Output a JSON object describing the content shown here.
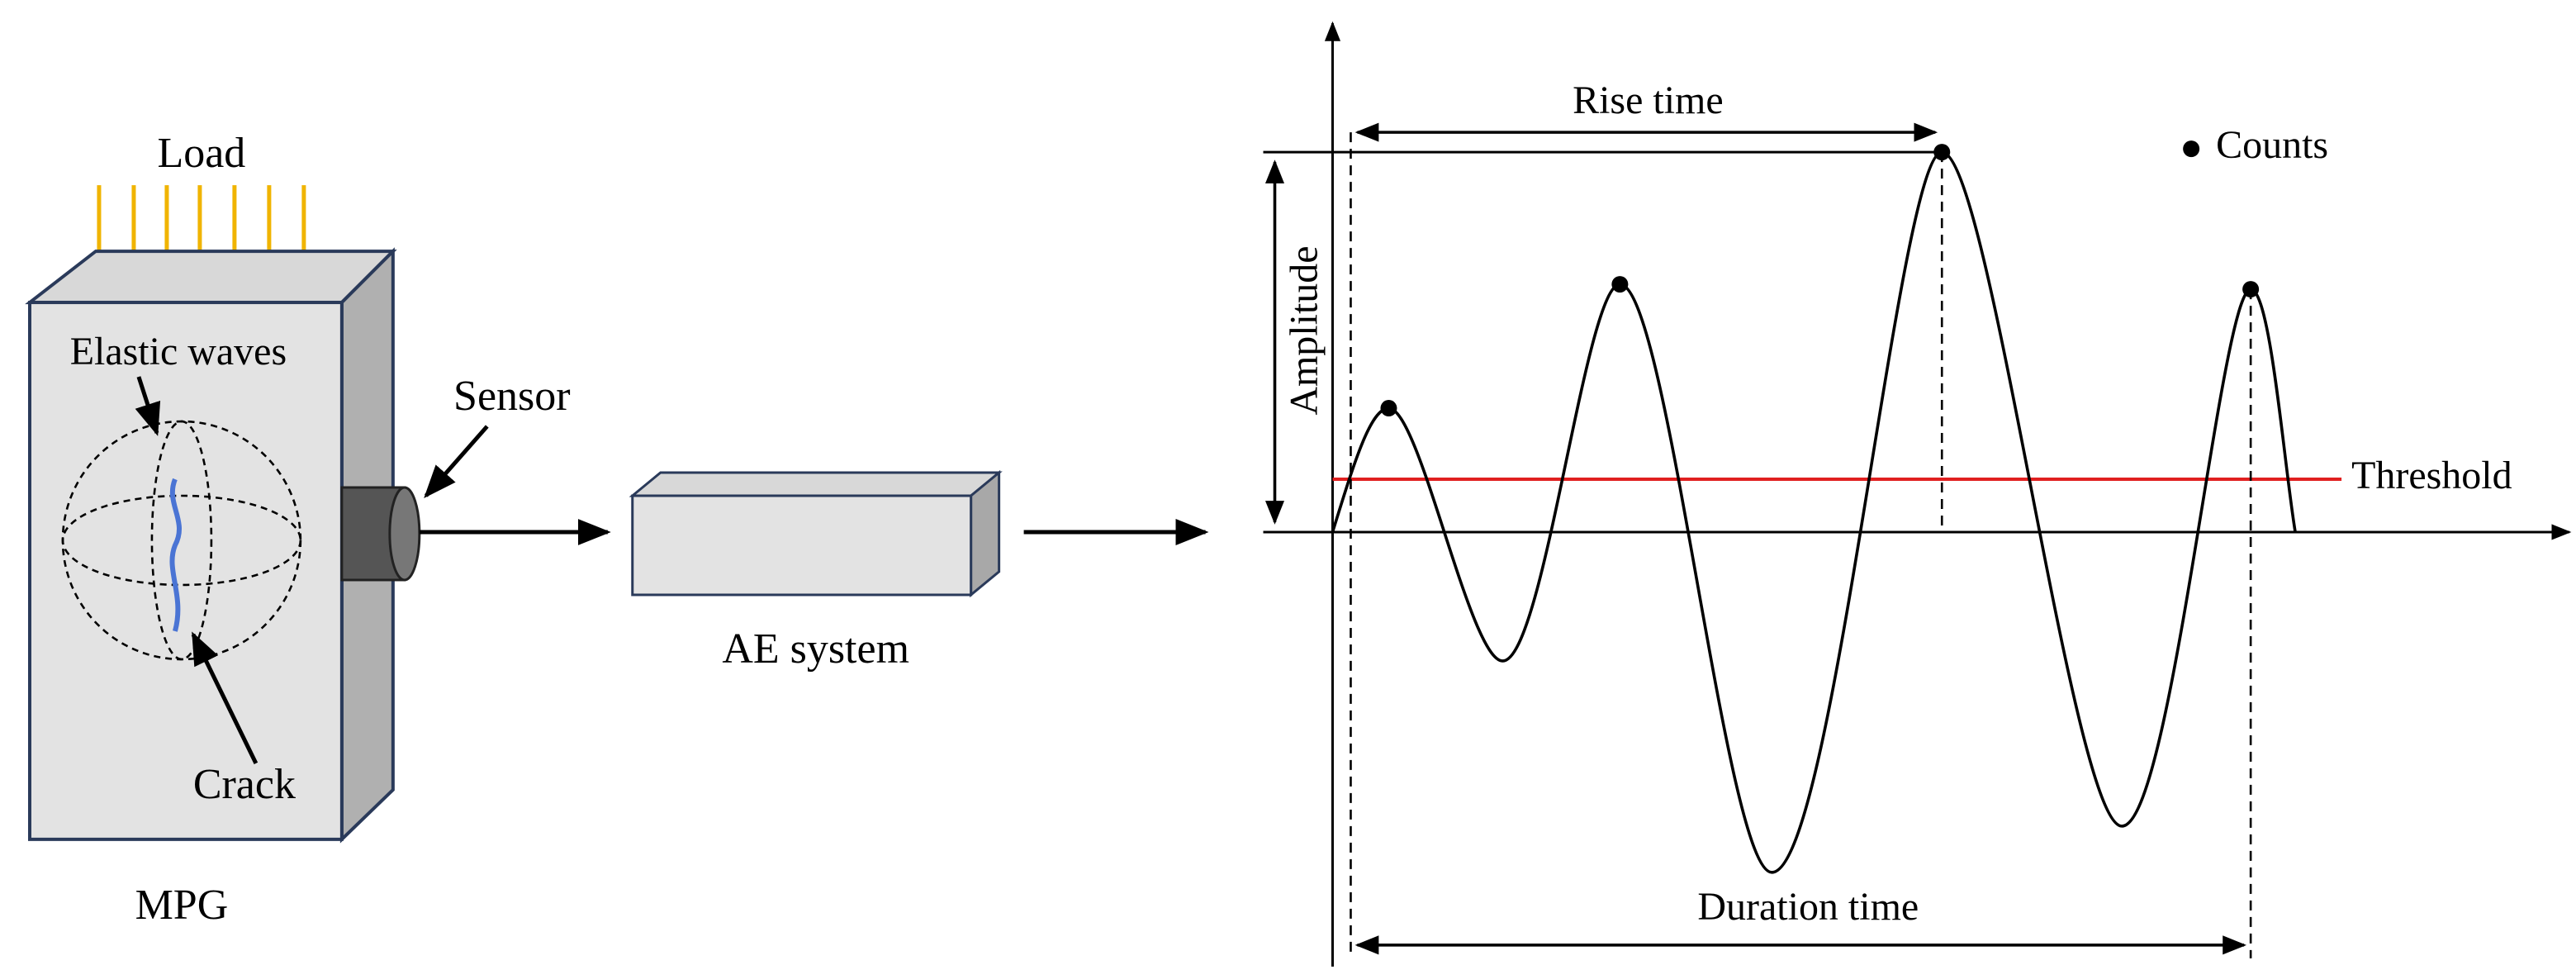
{
  "specimen": {
    "load": "Load",
    "waves": "Elastic waves",
    "crack": "Crack",
    "label": "MPG"
  },
  "sensor": "Sensor",
  "ae_system": "AE system",
  "waveform": {
    "rise_time": "Rise time",
    "counts": "Counts",
    "amplitude": "Amplitude",
    "threshold": "Threshold",
    "duration_time": "Duration time"
  }
}
